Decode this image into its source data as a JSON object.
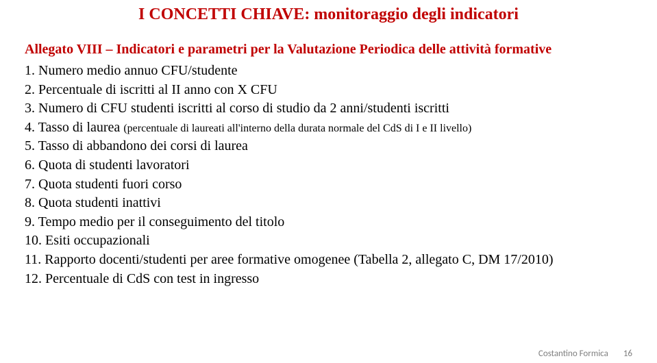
{
  "title": "I CONCETTI CHIAVE: monitoraggio degli indicatori",
  "subtitle": "Allegato VIII – Indicatori e parametri per la Valutazione Periodica delle attività formative",
  "items": [
    {
      "text": "1. Numero medio annuo CFU/studente"
    },
    {
      "text": "2. Percentuale di iscritti al II anno con X CFU"
    },
    {
      "text": "3. Numero di CFU studenti iscritti al corso di studio da 2 anni/studenti iscritti"
    },
    {
      "text": "4. Tasso di laurea ",
      "paren": "(percentuale di laureati all'interno della durata normale del CdS di I e II livello)"
    },
    {
      "text": "5. Tasso di abbandono dei corsi di laurea"
    },
    {
      "text": "6. Quota di studenti lavoratori"
    },
    {
      "text": "7. Quota studenti fuori corso"
    },
    {
      "text": "8. Quota studenti inattivi"
    },
    {
      "text": "9. Tempo medio per il conseguimento del titolo"
    },
    {
      "text": "10. Esiti occupazionali"
    },
    {
      "text": "11. Rapporto docenti/studenti per aree formative omogenee (Tabella 2, allegato C, DM 17/2010)"
    },
    {
      "text": "12. Percentuale di CdS con test in ingresso"
    }
  ],
  "footer": {
    "name": "Costantino Formica",
    "page": "16"
  },
  "colors": {
    "title_color": "#c00000",
    "body_color": "#000000",
    "footer_color": "#808080",
    "background": "#ffffff"
  },
  "fontsizes": {
    "title": 24,
    "subtitle": 20,
    "item": 20,
    "paren": 16,
    "footer": 13
  }
}
